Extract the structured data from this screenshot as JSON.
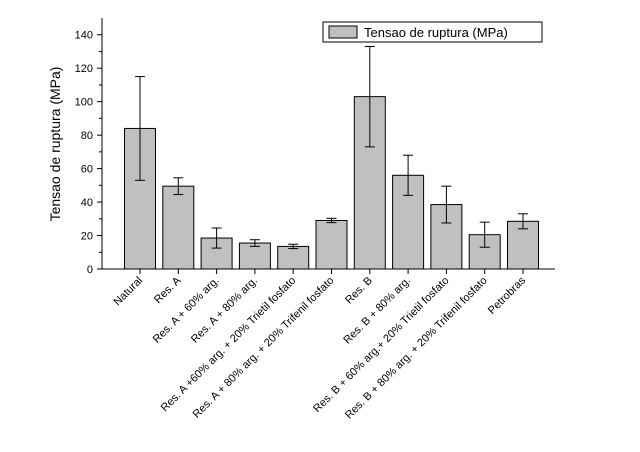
{
  "chart_data": {
    "type": "bar",
    "title": "",
    "xlabel": "",
    "ylabel": "Tensao de ruptura (MPa)",
    "ylim": [
      0,
      150
    ],
    "yticks": [
      0,
      20,
      40,
      60,
      80,
      100,
      120,
      140
    ],
    "grid": false,
    "legend_position": "top-right",
    "series": [
      {
        "name": "Tensao de ruptura (MPa)",
        "color": "#c0c0c0",
        "values": [
          84,
          49.5,
          18.5,
          15.5,
          13.5,
          29,
          103,
          56,
          38.5,
          20.5,
          28.5
        ],
        "error": [
          31,
          5,
          6,
          2,
          1.3,
          1.3,
          30,
          12,
          11,
          7.5,
          4.5
        ]
      }
    ],
    "categories": [
      "Natural",
      "Res. A",
      "Res. A + 60% arg.",
      "Res. A + 80% arg.",
      "Res. A +60% arg. + 20% Trietil fosfato",
      "Res. A + 80% arg. + 20% Trifenil fosfato",
      "Res. B",
      "Res. B + 80% arg.",
      "Res. B + 60% arg.+ 20% Trietil fosfato",
      "Res. B + 80% arg. + 20% Trifenil fosfato",
      "Petrobras"
    ]
  }
}
